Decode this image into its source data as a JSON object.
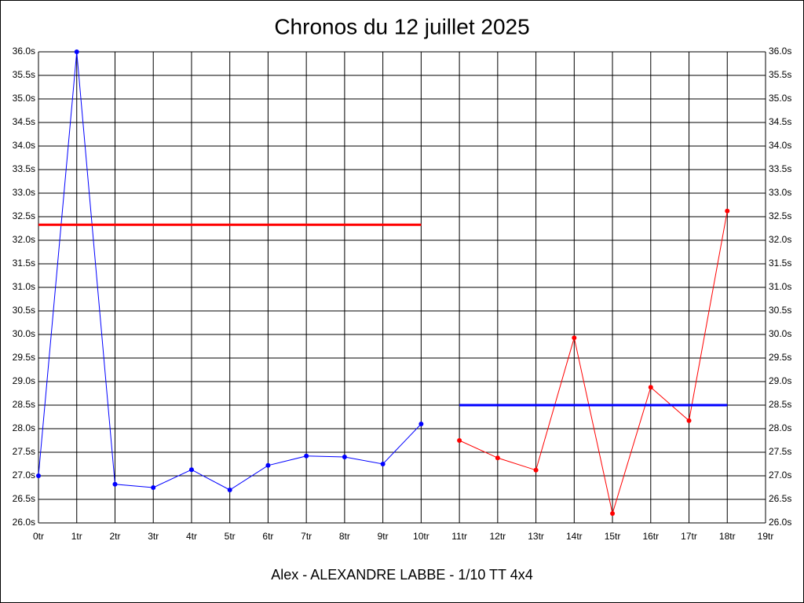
{
  "chart_data": {
    "type": "line",
    "title": "Chronos du 12 juillet 2025",
    "caption": "Alex - ALEXANDRE LABBE - 1/10 TT 4x4",
    "grid": true,
    "xlim": [
      0,
      19
    ],
    "xticks": [
      {
        "value": 0,
        "label": "0tr"
      },
      {
        "value": 1,
        "label": "1tr"
      },
      {
        "value": 2,
        "label": "2tr"
      },
      {
        "value": 3,
        "label": "3tr"
      },
      {
        "value": 4,
        "label": "4tr"
      },
      {
        "value": 5,
        "label": "5tr"
      },
      {
        "value": 6,
        "label": "6tr"
      },
      {
        "value": 7,
        "label": "7tr"
      },
      {
        "value": 8,
        "label": "8tr"
      },
      {
        "value": 9,
        "label": "9tr"
      },
      {
        "value": 10,
        "label": "10tr"
      },
      {
        "value": 11,
        "label": "11tr"
      },
      {
        "value": 12,
        "label": "12tr"
      },
      {
        "value": 13,
        "label": "13tr"
      },
      {
        "value": 14,
        "label": "14tr"
      },
      {
        "value": 15,
        "label": "15tr"
      },
      {
        "value": 16,
        "label": "16tr"
      },
      {
        "value": 17,
        "label": "17tr"
      },
      {
        "value": 18,
        "label": "18tr"
      },
      {
        "value": 19,
        "label": "19tr"
      }
    ],
    "ylim": [
      26,
      36
    ],
    "yticks": [
      {
        "value": 26,
        "label": "26.0s"
      },
      {
        "value": 26.5,
        "label": "26.5s"
      },
      {
        "value": 27,
        "label": "27.0s"
      },
      {
        "value": 27.5,
        "label": "27.5s"
      },
      {
        "value": 28,
        "label": "28.0s"
      },
      {
        "value": 28.5,
        "label": "28.5s"
      },
      {
        "value": 29,
        "label": "29.0s"
      },
      {
        "value": 29.5,
        "label": "29.5s"
      },
      {
        "value": 30,
        "label": "30.0s"
      },
      {
        "value": 30.5,
        "label": "30.5s"
      },
      {
        "value": 31,
        "label": "31.0s"
      },
      {
        "value": 31.5,
        "label": "31.5s"
      },
      {
        "value": 32,
        "label": "32.0s"
      },
      {
        "value": 32.5,
        "label": "32.5s"
      },
      {
        "value": 33,
        "label": "33.0s"
      },
      {
        "value": 33.5,
        "label": "33.5s"
      },
      {
        "value": 34,
        "label": "34.0s"
      },
      {
        "value": 34.5,
        "label": "34.5s"
      },
      {
        "value": 35,
        "label": "35.0s"
      },
      {
        "value": 35.5,
        "label": "35.5s"
      },
      {
        "value": 36,
        "label": "36.0s"
      }
    ],
    "series": [
      {
        "color": "#0000ff",
        "markers": true,
        "line_width": 1,
        "x": [
          0,
          1,
          2,
          3,
          4,
          5,
          6,
          7,
          8,
          9,
          10
        ],
        "values": [
          27.0,
          36.0,
          26.82,
          26.75,
          27.13,
          26.7,
          27.22,
          27.42,
          27.4,
          27.25,
          28.1
        ]
      },
      {
        "color": "#ff0000",
        "markers": true,
        "line_width": 1,
        "x": [
          11,
          12,
          13,
          14,
          15,
          16,
          17,
          18
        ],
        "values": [
          27.75,
          27.38,
          27.12,
          29.93,
          26.2,
          28.88,
          28.17,
          32.62
        ]
      },
      {
        "color": "#ff0000",
        "markers": false,
        "line_width": 3,
        "x": [
          0,
          10
        ],
        "values": [
          32.33,
          32.33
        ]
      },
      {
        "color": "#0000ff",
        "markers": false,
        "line_width": 3,
        "x": [
          11,
          18
        ],
        "values": [
          28.5,
          28.5
        ]
      }
    ]
  }
}
